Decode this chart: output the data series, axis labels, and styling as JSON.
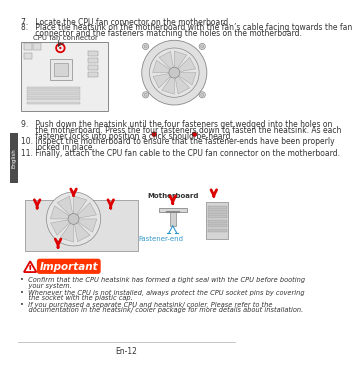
{
  "bg_color": "#ffffff",
  "tab_color": "#4a4a4a",
  "tab_text": "English",
  "tab_text_color": "#ffffff",
  "page_num": "En-12",
  "step7": "7.   Locate the CPU fan connector on the motherboard.",
  "step8_line1": "8.   Place the heatsink on the motherboard with the fan’s cable facing towards the fan",
  "step8_line2": "      connector and the fasteners matching the holes on the motherboard.",
  "cpu_fan_label": "CPU fan connector",
  "step9_line1": "9.   Push down the heatsink until the four fasteners get wedged into the holes on",
  "step9_line2": "      the motherboard. Press the four fasteners down to fasten the heatsink. As each",
  "step9_line3": "      fastener locks into position a click should be heard.",
  "step10_line1": "10. Inspect the motherboard to ensure that the fastener-ends have been properly",
  "step10_line2": "      locked in place.",
  "step11": "11. Finally, attach the CPU fan cable to the CPU fan connector on the motherboard.",
  "motherboard_label": "Motherboard",
  "fastener_label": "Fastener-end",
  "important_title": "Important",
  "bullet1_line1": "•  Confirm that the CPU heatsink has formed a tight seal with the CPU before booting",
  "bullet1_line2": "    your system.",
  "bullet2_line1": "•  Whenever the CPU is not installed, always protect the CPU socket pins by covering",
  "bullet2_line2": "    the socket with the plastic cap.",
  "bullet3_line1": "•  If you purchased a separate CPU and heatsink/ cooler, Please refer to the",
  "bullet3_line2": "    documentation in the heatsink/ cooler package for more details about installation.",
  "text_color": "#333333",
  "important_color": "#ff3300",
  "line_color": "#bbbbbb",
  "arrow_color": "#dd0000",
  "highlight_circle_color": "#dd0000",
  "cyan_color": "#3399cc",
  "diagram_edge": "#888888",
  "diagram_fill": "#eeeeee",
  "diagram_fill2": "#e0e0e0",
  "slot_fill": "#d8d8d8"
}
